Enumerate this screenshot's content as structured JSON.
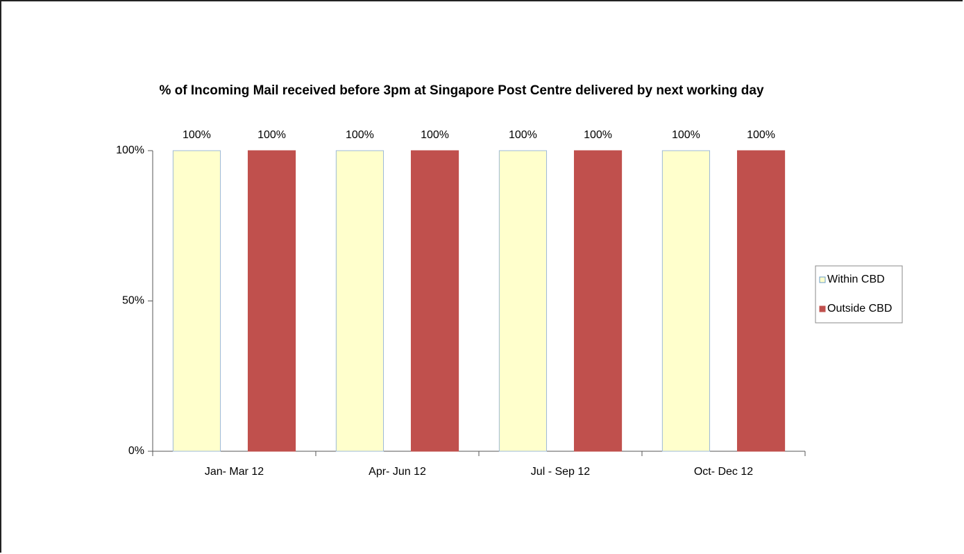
{
  "chart_data": {
    "type": "bar",
    "title": "% of Incoming Mail received before 3pm at Singapore Post Centre delivered by next working day",
    "categories": [
      "Jan- Mar 12",
      "Apr- Jun 12",
      "Jul - Sep 12",
      "Oct- Dec 12"
    ],
    "series": [
      {
        "name": "Within CBD",
        "color": "#ffffcc",
        "values": [
          100,
          100,
          100,
          100
        ],
        "value_labels": [
          "100%",
          "100%",
          "100%",
          "100%"
        ]
      },
      {
        "name": "Outside CBD",
        "color": "#c0504d",
        "values": [
          100,
          100,
          100,
          100
        ],
        "value_labels": [
          "100%",
          "100%",
          "100%",
          "100%"
        ]
      }
    ],
    "ylim": [
      0,
      100
    ],
    "yticks": [
      {
        "value": 0,
        "label": "0%"
      },
      {
        "value": 50,
        "label": "50%"
      },
      {
        "value": 100,
        "label": "100%"
      }
    ],
    "grid": false,
    "legend": "right"
  }
}
